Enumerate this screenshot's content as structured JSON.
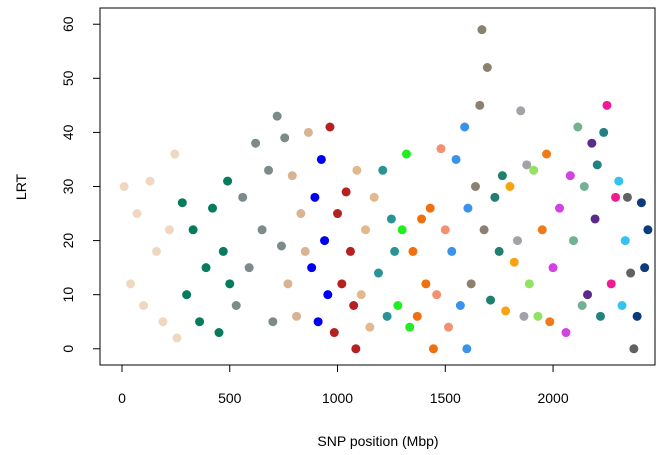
{
  "chart_data": {
    "type": "scatter",
    "xlabel": "SNP position (Mbp)",
    "ylabel": "LRT",
    "xlim": [
      -102,
      2473
    ],
    "ylim": [
      -3,
      63
    ],
    "xticks": [
      0,
      500,
      1000,
      1500,
      2000
    ],
    "yticks": [
      0,
      10,
      20,
      30,
      40,
      50,
      60
    ],
    "series": [
      {
        "color": "#efd8bf",
        "x": [
          10,
          40,
          70,
          100,
          130,
          160,
          190,
          220,
          245,
          255
        ],
        "y": [
          30,
          12,
          25,
          8,
          31,
          18,
          5,
          22,
          36,
          2
        ]
      },
      {
        "color": "#087a5e",
        "x": [
          280,
          300,
          330,
          360,
          390,
          420,
          450,
          470,
          490,
          500
        ],
        "y": [
          27,
          10,
          22,
          5,
          15,
          26,
          3,
          18,
          31,
          12
        ]
      },
      {
        "color": "#7b8b89",
        "x": [
          530,
          560,
          590,
          620,
          650,
          680,
          700,
          720,
          740,
          755
        ],
        "y": [
          8,
          28,
          15,
          38,
          22,
          33,
          5,
          43,
          19,
          39
        ]
      },
      {
        "color": "#d8b493",
        "x": [
          770,
          790,
          810,
          830,
          850,
          865
        ],
        "y": [
          12,
          32,
          6,
          25,
          18,
          40
        ]
      },
      {
        "color": "#0000f0",
        "x": [
          880,
          895,
          910,
          925,
          940,
          955
        ],
        "y": [
          15,
          28,
          5,
          35,
          20,
          10
        ]
      },
      {
        "color": "#b52020",
        "x": [
          965,
          985,
          1000,
          1020,
          1040,
          1060,
          1075,
          1085
        ],
        "y": [
          41,
          3,
          25,
          12,
          29,
          18,
          8,
          0
        ]
      },
      {
        "color": "#e2b98f",
        "x": [
          1090,
          1110,
          1130,
          1150,
          1170
        ],
        "y": [
          33,
          10,
          22,
          4,
          28
        ]
      },
      {
        "color": "#2a9494",
        "x": [
          1190,
          1210,
          1230,
          1250,
          1265
        ],
        "y": [
          14,
          33,
          6,
          24,
          18
        ]
      },
      {
        "color": "#20ee20",
        "x": [
          1280,
          1300,
          1320,
          1335
        ],
        "y": [
          8,
          22,
          36,
          4
        ]
      },
      {
        "color": "#f07010",
        "x": [
          1350,
          1370,
          1390,
          1410,
          1430,
          1445
        ],
        "y": [
          18,
          6,
          24,
          12,
          26,
          0
        ]
      },
      {
        "color": "#f39072",
        "x": [
          1460,
          1480,
          1500,
          1515
        ],
        "y": [
          10,
          37,
          22,
          4
        ]
      },
      {
        "color": "#3a92ea",
        "x": [
          1530,
          1550,
          1570,
          1590,
          1605,
          1600
        ],
        "y": [
          18,
          35,
          8,
          41,
          26,
          0
        ]
      },
      {
        "color": "#8a8170",
        "x": [
          1620,
          1640,
          1660,
          1670,
          1680,
          1695
        ],
        "y": [
          12,
          30,
          45,
          59,
          22,
          52
        ]
      },
      {
        "color": "#1f8070",
        "x": [
          1710,
          1730,
          1750,
          1765
        ],
        "y": [
          9,
          28,
          18,
          32
        ]
      },
      {
        "color": "#f8a412",
        "x": [
          1780,
          1800,
          1820
        ],
        "y": [
          7,
          30,
          16
        ]
      },
      {
        "color": "#a2a2aa",
        "x": [
          1835,
          1850,
          1865,
          1878
        ],
        "y": [
          20,
          44,
          6,
          34
        ]
      },
      {
        "color": "#92e262",
        "x": [
          1890,
          1910,
          1930
        ],
        "y": [
          12,
          33,
          6
        ]
      },
      {
        "color": "#f07a1a",
        "x": [
          1950,
          1970,
          1985
        ],
        "y": [
          22,
          36,
          5
        ]
      },
      {
        "color": "#d242e2",
        "x": [
          2000,
          2030,
          2060,
          2080
        ],
        "y": [
          15,
          26,
          3,
          32
        ]
      },
      {
        "color": "#72b292",
        "x": [
          2095,
          2115,
          2135,
          2145
        ],
        "y": [
          20,
          41,
          8,
          30
        ]
      },
      {
        "color": "#5b2b8b",
        "x": [
          2160,
          2180,
          2195
        ],
        "y": [
          10,
          38,
          24
        ]
      },
      {
        "color": "#218282",
        "x": [
          2205,
          2220,
          2235
        ],
        "y": [
          34,
          6,
          40
        ]
      },
      {
        "color": "#f21a92",
        "x": [
          2250,
          2270,
          2290
        ],
        "y": [
          45,
          12,
          28
        ]
      },
      {
        "color": "#33c2f2",
        "x": [
          2305,
          2320,
          2335
        ],
        "y": [
          31,
          8,
          20
        ]
      },
      {
        "color": "#626262",
        "x": [
          2345,
          2360,
          2375
        ],
        "y": [
          28,
          14,
          0
        ]
      },
      {
        "color": "#0b3b7b",
        "x": [
          2390,
          2410,
          2425,
          2440
        ],
        "y": [
          6,
          27,
          15,
          22
        ]
      }
    ]
  }
}
